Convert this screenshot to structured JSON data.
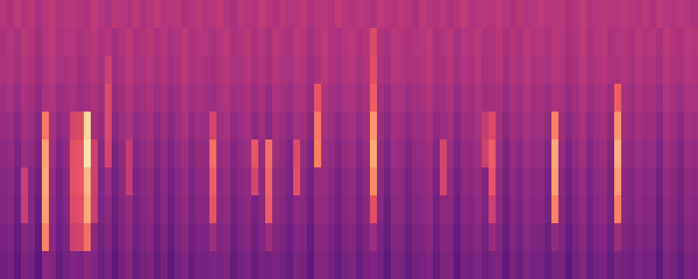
{
  "chart_data": {
    "type": "heatmap",
    "tick_labels": false,
    "grid": false,
    "zlim": [
      0,
      100
    ],
    "cells": [
      [
        50,
        48,
        52,
        49,
        51,
        47,
        50,
        53,
        49,
        50,
        51,
        49,
        48,
        52,
        50,
        47,
        51,
        50,
        49,
        52,
        48,
        50,
        53,
        49,
        50,
        51,
        48,
        50,
        52,
        49,
        50,
        52,
        49,
        47,
        51,
        50,
        49,
        53,
        50,
        48,
        51,
        49,
        50,
        52,
        48,
        50,
        51,
        49,
        53,
        50,
        49,
        51,
        50,
        48,
        52,
        50,
        49,
        51,
        50,
        47,
        52,
        50,
        49,
        51,
        48,
        50,
        53,
        49,
        50,
        51,
        49,
        52,
        50,
        48,
        51,
        49,
        50,
        52,
        49,
        50,
        51,
        48,
        50,
        53,
        49,
        50,
        51,
        49,
        50,
        52,
        50,
        49,
        51,
        48,
        52,
        50,
        49,
        51,
        50,
        48
      ],
      [
        48,
        50,
        47,
        51,
        49,
        46,
        50,
        52,
        48,
        49,
        50,
        47,
        49,
        51,
        48,
        50,
        46,
        49,
        52,
        48,
        49,
        51,
        48,
        50,
        47,
        49,
        52,
        48,
        50,
        49,
        47,
        50,
        52,
        48,
        49,
        51,
        48,
        50,
        47,
        51,
        49,
        48,
        51,
        50,
        46,
        49,
        52,
        49,
        48,
        50,
        51,
        48,
        50,
        60,
        49,
        47,
        51,
        50,
        48,
        49,
        50,
        52,
        48,
        49,
        51,
        47,
        50,
        49,
        52,
        48,
        49,
        51,
        47,
        50,
        48,
        52,
        49,
        50,
        48,
        51,
        50,
        47,
        49,
        52,
        48,
        50,
        51,
        48,
        49,
        50,
        48,
        51,
        49,
        50,
        47,
        52,
        49,
        48,
        51,
        50
      ],
      [
        47,
        49,
        46,
        50,
        48,
        45,
        49,
        51,
        47,
        48,
        49,
        46,
        48,
        50,
        47,
        56,
        45,
        48,
        51,
        47,
        48,
        50,
        47,
        49,
        46,
        48,
        51,
        47,
        49,
        48,
        46,
        49,
        51,
        47,
        48,
        50,
        47,
        49,
        46,
        50,
        48,
        47,
        50,
        49,
        45,
        48,
        51,
        48,
        47,
        49,
        50,
        47,
        49,
        62,
        48,
        46,
        50,
        49,
        47,
        48,
        49,
        51,
        47,
        48,
        50,
        46,
        49,
        48,
        51,
        47,
        48,
        50,
        46,
        49,
        47,
        51,
        48,
        49,
        47,
        50,
        49,
        46,
        48,
        51,
        47,
        49,
        50,
        47,
        48,
        49,
        47,
        50,
        48,
        49,
        46,
        51,
        48,
        47,
        50,
        49
      ],
      [
        45,
        47,
        43,
        48,
        46,
        42,
        47,
        49,
        44,
        46,
        47,
        44,
        46,
        48,
        45,
        60,
        43,
        46,
        49,
        45,
        46,
        48,
        44,
        47,
        43,
        46,
        49,
        45,
        47,
        46,
        44,
        47,
        49,
        45,
        46,
        48,
        44,
        47,
        43,
        48,
        46,
        44,
        48,
        47,
        43,
        64,
        49,
        46,
        44,
        47,
        48,
        45,
        47,
        66,
        46,
        43,
        48,
        47,
        44,
        46,
        47,
        49,
        44,
        46,
        48,
        43,
        47,
        46,
        49,
        45,
        46,
        48,
        43,
        47,
        45,
        49,
        46,
        47,
        44,
        48,
        47,
        43,
        46,
        49,
        45,
        47,
        48,
        44,
        66,
        47,
        45,
        48,
        46,
        47,
        43,
        49,
        46,
        44,
        48,
        47
      ],
      [
        43,
        45,
        40,
        46,
        44,
        39,
        72,
        47,
        41,
        44,
        58,
        60,
        92,
        46,
        43,
        60,
        40,
        44,
        47,
        42,
        44,
        46,
        41,
        45,
        40,
        44,
        47,
        42,
        45,
        44,
        58,
        45,
        47,
        42,
        44,
        46,
        41,
        45,
        40,
        46,
        44,
        41,
        46,
        45,
        40,
        72,
        47,
        44,
        41,
        45,
        46,
        42,
        45,
        78,
        44,
        40,
        46,
        45,
        41,
        44,
        45,
        47,
        41,
        44,
        46,
        40,
        45,
        44,
        47,
        54,
        60,
        46,
        40,
        45,
        43,
        47,
        44,
        45,
        41,
        74,
        45,
        40,
        44,
        47,
        42,
        45,
        46,
        41,
        78,
        45,
        43,
        46,
        44,
        45,
        40,
        47,
        44,
        41,
        46,
        45
      ],
      [
        41,
        43,
        37,
        44,
        42,
        36,
        80,
        45,
        38,
        42,
        62,
        64,
        95,
        56,
        40,
        58,
        37,
        42,
        54,
        39,
        42,
        44,
        38,
        43,
        37,
        42,
        45,
        39,
        43,
        42,
        70,
        43,
        45,
        39,
        42,
        44,
        64,
        43,
        70,
        44,
        42,
        38,
        60,
        43,
        37,
        74,
        45,
        42,
        38,
        43,
        44,
        39,
        43,
        82,
        42,
        37,
        44,
        43,
        38,
        42,
        43,
        45,
        38,
        58,
        44,
        37,
        43,
        42,
        45,
        56,
        66,
        44,
        37,
        43,
        40,
        45,
        42,
        43,
        38,
        82,
        43,
        37,
        42,
        45,
        39,
        43,
        44,
        38,
        84,
        43,
        41,
        44,
        42,
        43,
        37,
        45,
        42,
        38,
        44,
        43
      ],
      [
        39,
        41,
        35,
        55,
        40,
        34,
        82,
        43,
        36,
        40,
        62,
        64,
        85,
        56,
        38,
        44,
        35,
        40,
        54,
        37,
        40,
        42,
        36,
        41,
        35,
        40,
        43,
        37,
        41,
        40,
        66,
        41,
        43,
        37,
        40,
        42,
        58,
        41,
        68,
        42,
        40,
        36,
        62,
        41,
        35,
        43,
        43,
        40,
        36,
        41,
        42,
        37,
        41,
        76,
        40,
        35,
        42,
        41,
        36,
        40,
        41,
        43,
        36,
        58,
        42,
        35,
        41,
        40,
        43,
        38,
        64,
        42,
        35,
        41,
        38,
        43,
        40,
        41,
        36,
        80,
        41,
        35,
        40,
        43,
        37,
        41,
        42,
        36,
        80,
        41,
        39,
        42,
        40,
        41,
        35,
        43,
        40,
        36,
        42,
        41
      ],
      [
        38,
        40,
        33,
        55,
        39,
        32,
        80,
        42,
        35,
        39,
        60,
        62,
        82,
        55,
        37,
        41,
        33,
        39,
        43,
        36,
        39,
        41,
        35,
        40,
        33,
        39,
        42,
        36,
        40,
        39,
        64,
        40,
        42,
        35,
        39,
        41,
        36,
        40,
        66,
        41,
        39,
        35,
        41,
        40,
        33,
        42,
        42,
        39,
        35,
        40,
        41,
        36,
        40,
        62,
        39,
        33,
        41,
        40,
        35,
        39,
        40,
        42,
        35,
        41,
        41,
        33,
        40,
        39,
        42,
        37,
        56,
        41,
        33,
        40,
        37,
        42,
        39,
        40,
        35,
        74,
        40,
        33,
        39,
        42,
        36,
        40,
        41,
        35,
        74,
        40,
        38,
        41,
        39,
        40,
        33,
        42,
        39,
        35,
        41,
        40
      ],
      [
        36,
        38,
        31,
        39,
        37,
        30,
        74,
        40,
        33,
        37,
        56,
        58,
        70,
        40,
        35,
        39,
        31,
        37,
        41,
        34,
        37,
        39,
        33,
        38,
        31,
        37,
        40,
        34,
        38,
        37,
        45,
        38,
        40,
        33,
        37,
        39,
        34,
        38,
        44,
        39,
        37,
        33,
        39,
        38,
        31,
        40,
        40,
        37,
        33,
        38,
        39,
        34,
        38,
        44,
        37,
        31,
        39,
        38,
        33,
        37,
        38,
        40,
        33,
        39,
        39,
        31,
        38,
        37,
        40,
        35,
        43,
        39,
        31,
        38,
        35,
        40,
        37,
        38,
        33,
        42,
        38,
        31,
        37,
        40,
        34,
        38,
        39,
        33,
        44,
        38,
        36,
        39,
        37,
        38,
        31,
        40,
        37,
        33,
        39,
        38
      ],
      [
        34,
        36,
        29,
        37,
        35,
        28,
        40,
        38,
        31,
        35,
        38,
        36,
        40,
        38,
        33,
        37,
        29,
        35,
        39,
        32,
        35,
        37,
        31,
        36,
        29,
        35,
        38,
        32,
        36,
        35,
        37,
        36,
        38,
        31,
        35,
        37,
        32,
        36,
        35,
        37,
        35,
        31,
        37,
        36,
        29,
        38,
        38,
        35,
        31,
        36,
        37,
        32,
        36,
        38,
        35,
        29,
        37,
        36,
        31,
        35,
        36,
        38,
        31,
        37,
        37,
        29,
        36,
        35,
        38,
        33,
        36,
        37,
        29,
        36,
        33,
        38,
        35,
        36,
        31,
        36,
        36,
        29,
        35,
        38,
        32,
        36,
        37,
        31,
        37,
        36,
        34,
        37,
        35,
        36,
        29,
        38,
        35,
        31,
        37,
        36
      ]
    ]
  }
}
